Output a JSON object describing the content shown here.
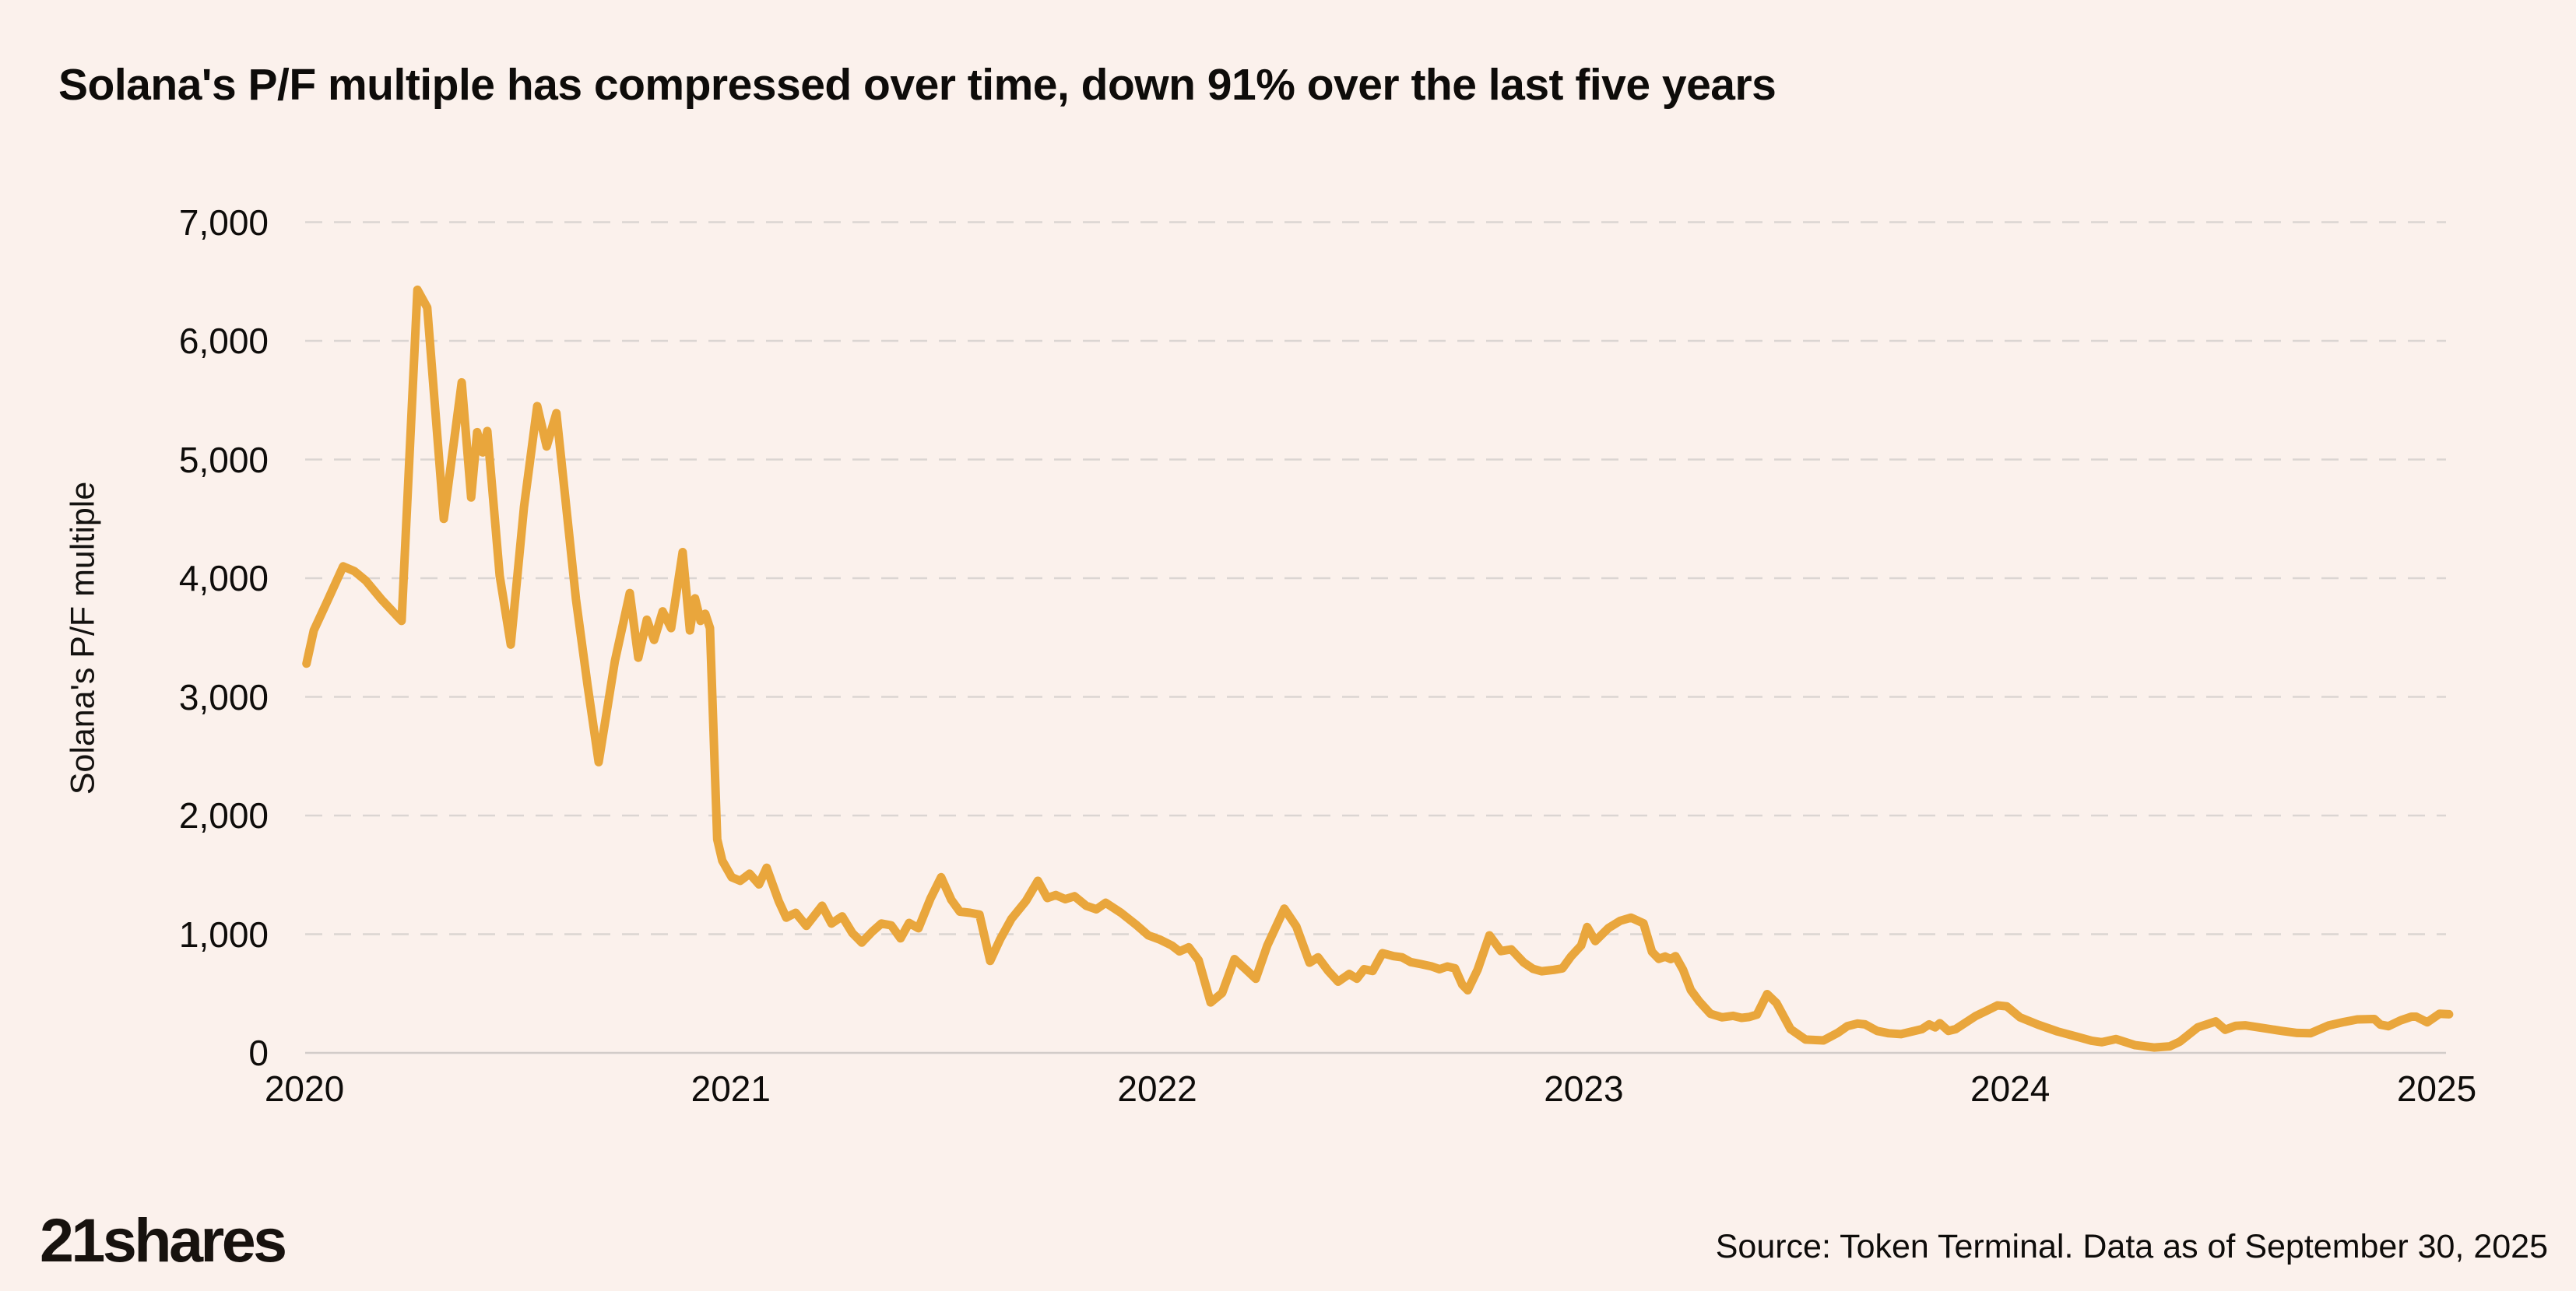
{
  "page": {
    "title": "Solana's P/F multiple has compressed over time, down 91% over the last five years"
  },
  "footer": {
    "logo": "21shares",
    "source": "Source: Token Terminal. Data as of September 30, 2025"
  },
  "colors": {
    "background": "#FBF1EC",
    "line": "#E9A63C",
    "grid_dashed": "#DBD5D2",
    "axis_zero_line": "#D2CCC9",
    "text": "#0E0C0A"
  },
  "chart_data": {
    "type": "line",
    "title": "Solana's P/F multiple has compressed over time, down 91% over the last five years",
    "xlabel": "",
    "ylabel": "Solana's P/F multiple",
    "legend": "none",
    "grid": "horizontal dashed gridlines, solid zero baseline",
    "ylim": [
      0,
      7000
    ],
    "xlim": [
      2020,
      2025.05
    ],
    "y_ticks": [
      {
        "label": "0",
        "value": 0
      },
      {
        "label": "1,000",
        "value": 1000
      },
      {
        "label": "2,000",
        "value": 2000
      },
      {
        "label": "3,000",
        "value": 3000
      },
      {
        "label": "4,000",
        "value": 4000
      },
      {
        "label": "5,000",
        "value": 5000
      },
      {
        "label": "6,000",
        "value": 6000
      },
      {
        "label": "7,000",
        "value": 7000
      }
    ],
    "x_ticks": [
      {
        "label": "2020",
        "value": 2020
      },
      {
        "label": "2021",
        "value": 2021
      },
      {
        "label": "2022",
        "value": 2022
      },
      {
        "label": "2023",
        "value": 2023
      },
      {
        "label": "2024",
        "value": 2024
      },
      {
        "label": "2025",
        "value": 2025
      }
    ],
    "series": [
      {
        "name": "Solana's P/F multiple",
        "color": "#E9A63C",
        "points": [
          [
            2020.005,
            3280
          ],
          [
            2020.022,
            3560
          ],
          [
            2020.053,
            3800
          ],
          [
            2020.091,
            4100
          ],
          [
            2020.117,
            4060
          ],
          [
            2020.144,
            3980
          ],
          [
            2020.181,
            3820
          ],
          [
            2020.228,
            3640
          ],
          [
            2020.265,
            6430
          ],
          [
            2020.288,
            6280
          ],
          [
            2020.327,
            4500
          ],
          [
            2020.369,
            5650
          ],
          [
            2020.391,
            4680
          ],
          [
            2020.405,
            5230
          ],
          [
            2020.418,
            5060
          ],
          [
            2020.429,
            5240
          ],
          [
            2020.458,
            4020
          ],
          [
            2020.484,
            3440
          ],
          [
            2020.515,
            4600
          ],
          [
            2020.546,
            5450
          ],
          [
            2020.568,
            5110
          ],
          [
            2020.591,
            5390
          ],
          [
            2020.637,
            3820
          ],
          [
            2020.664,
            3100
          ],
          [
            2020.69,
            2450
          ],
          [
            2020.728,
            3300
          ],
          [
            2020.763,
            3875
          ],
          [
            2020.783,
            3330
          ],
          [
            2020.803,
            3650
          ],
          [
            2020.82,
            3480
          ],
          [
            2020.84,
            3720
          ],
          [
            2020.86,
            3580
          ],
          [
            2020.887,
            4220
          ],
          [
            2020.904,
            3560
          ],
          [
            2020.916,
            3830
          ],
          [
            2020.929,
            3640
          ],
          [
            2020.94,
            3700
          ],
          [
            2020.951,
            3580
          ],
          [
            2020.968,
            1800
          ],
          [
            2020.98,
            1620
          ],
          [
            2021.002,
            1480
          ],
          [
            2021.022,
            1450
          ],
          [
            2021.044,
            1510
          ],
          [
            2021.066,
            1420
          ],
          [
            2021.084,
            1560
          ],
          [
            2021.112,
            1280
          ],
          [
            2021.13,
            1140
          ],
          [
            2021.152,
            1180
          ],
          [
            2021.177,
            1070
          ],
          [
            2021.214,
            1240
          ],
          [
            2021.236,
            1090
          ],
          [
            2021.261,
            1150
          ],
          [
            2021.285,
            1010
          ],
          [
            2021.307,
            930
          ],
          [
            2021.331,
            1020
          ],
          [
            2021.353,
            1090
          ],
          [
            2021.376,
            1075
          ],
          [
            2021.398,
            965
          ],
          [
            2021.418,
            1095
          ],
          [
            2021.44,
            1050
          ],
          [
            2021.468,
            1300
          ],
          [
            2021.493,
            1480
          ],
          [
            2021.517,
            1290
          ],
          [
            2021.537,
            1190
          ],
          [
            2021.561,
            1180
          ],
          [
            2021.583,
            1165
          ],
          [
            2021.608,
            775
          ],
          [
            2021.632,
            960
          ],
          [
            2021.658,
            1130
          ],
          [
            2021.692,
            1280
          ],
          [
            2021.72,
            1450
          ],
          [
            2021.742,
            1305
          ],
          [
            2021.762,
            1330
          ],
          [
            2021.784,
            1295
          ],
          [
            2021.806,
            1320
          ],
          [
            2021.833,
            1240
          ],
          [
            2021.857,
            1210
          ],
          [
            2021.879,
            1265
          ],
          [
            2021.915,
            1180
          ],
          [
            2021.952,
            1075
          ],
          [
            2021.979,
            990
          ],
          [
            2022.006,
            955
          ],
          [
            2022.034,
            905
          ],
          [
            2022.052,
            855
          ],
          [
            2022.074,
            890
          ],
          [
            2022.097,
            780
          ],
          [
            2022.125,
            425
          ],
          [
            2022.152,
            505
          ],
          [
            2022.181,
            790
          ],
          [
            2022.207,
            705
          ],
          [
            2022.231,
            625
          ],
          [
            2022.258,
            905
          ],
          [
            2022.298,
            1215
          ],
          [
            2022.326,
            1065
          ],
          [
            2022.357,
            760
          ],
          [
            2022.377,
            805
          ],
          [
            2022.401,
            690
          ],
          [
            2022.424,
            600
          ],
          [
            2022.45,
            665
          ],
          [
            2022.468,
            625
          ],
          [
            2022.485,
            705
          ],
          [
            2022.505,
            690
          ],
          [
            2022.528,
            840
          ],
          [
            2022.554,
            815
          ],
          [
            2022.574,
            805
          ],
          [
            2022.594,
            765
          ],
          [
            2022.618,
            748
          ],
          [
            2022.642,
            730
          ],
          [
            2022.662,
            705
          ],
          [
            2022.68,
            728
          ],
          [
            2022.698,
            712
          ],
          [
            2022.715,
            575
          ],
          [
            2022.728,
            528
          ],
          [
            2022.751,
            700
          ],
          [
            2022.779,
            990
          ],
          [
            2022.806,
            858
          ],
          [
            2022.83,
            872
          ],
          [
            2022.859,
            762
          ],
          [
            2022.881,
            708
          ],
          [
            2022.901,
            688
          ],
          [
            2022.93,
            700
          ],
          [
            2022.95,
            712
          ],
          [
            2022.97,
            812
          ],
          [
            2022.994,
            905
          ],
          [
            2023.008,
            1060
          ],
          [
            2023.027,
            942
          ],
          [
            2023.058,
            1052
          ],
          [
            2023.085,
            1112
          ],
          [
            2023.111,
            1140
          ],
          [
            2023.14,
            1092
          ],
          [
            2023.16,
            852
          ],
          [
            2023.176,
            792
          ],
          [
            2023.191,
            812
          ],
          [
            2023.204,
            790
          ],
          [
            2023.215,
            815
          ],
          [
            2023.233,
            700
          ],
          [
            2023.251,
            530
          ],
          [
            2023.271,
            432
          ],
          [
            2023.297,
            330
          ],
          [
            2023.324,
            300
          ],
          [
            2023.35,
            312
          ],
          [
            2023.37,
            295
          ],
          [
            2023.388,
            302
          ],
          [
            2023.406,
            322
          ],
          [
            2023.43,
            495
          ],
          [
            2023.452,
            420
          ],
          [
            2023.485,
            200
          ],
          [
            2023.52,
            112
          ],
          [
            2023.562,
            105
          ],
          [
            2023.596,
            170
          ],
          [
            2023.618,
            225
          ],
          [
            2023.642,
            247
          ],
          [
            2023.66,
            240
          ],
          [
            2023.688,
            185
          ],
          [
            2023.715,
            165
          ],
          [
            2023.744,
            158
          ],
          [
            2023.77,
            180
          ],
          [
            2023.793,
            200
          ],
          [
            2023.81,
            240
          ],
          [
            2023.824,
            215
          ],
          [
            2023.835,
            250
          ],
          [
            2023.855,
            185
          ],
          [
            2023.872,
            200
          ],
          [
            2023.919,
            310
          ],
          [
            2023.943,
            352
          ],
          [
            2023.97,
            400
          ],
          [
            2023.992,
            392
          ],
          [
            2024.023,
            300
          ],
          [
            2024.065,
            238
          ],
          [
            2024.111,
            180
          ],
          [
            2024.153,
            140
          ],
          [
            2024.191,
            102
          ],
          [
            2024.215,
            90
          ],
          [
            2024.248,
            116
          ],
          [
            2024.293,
            65
          ],
          [
            2024.337,
            45
          ],
          [
            2024.374,
            55
          ],
          [
            2024.398,
            95
          ],
          [
            2024.44,
            215
          ],
          [
            2024.482,
            265
          ],
          [
            2024.504,
            195
          ],
          [
            2024.529,
            228
          ],
          [
            2024.551,
            232
          ],
          [
            2024.564,
            225
          ],
          [
            2024.6,
            205
          ],
          [
            2024.637,
            185
          ],
          [
            2024.673,
            168
          ],
          [
            2024.704,
            165
          ],
          [
            2024.746,
            230
          ],
          [
            2024.783,
            260
          ],
          [
            2024.814,
            282
          ],
          [
            2024.854,
            285
          ],
          [
            2024.868,
            238
          ],
          [
            2024.887,
            225
          ],
          [
            2024.916,
            275
          ],
          [
            2024.941,
            305
          ],
          [
            2024.952,
            305
          ],
          [
            2024.978,
            258
          ],
          [
            2025.007,
            330
          ],
          [
            2025.029,
            325
          ]
        ]
      }
    ],
    "annotations": []
  }
}
